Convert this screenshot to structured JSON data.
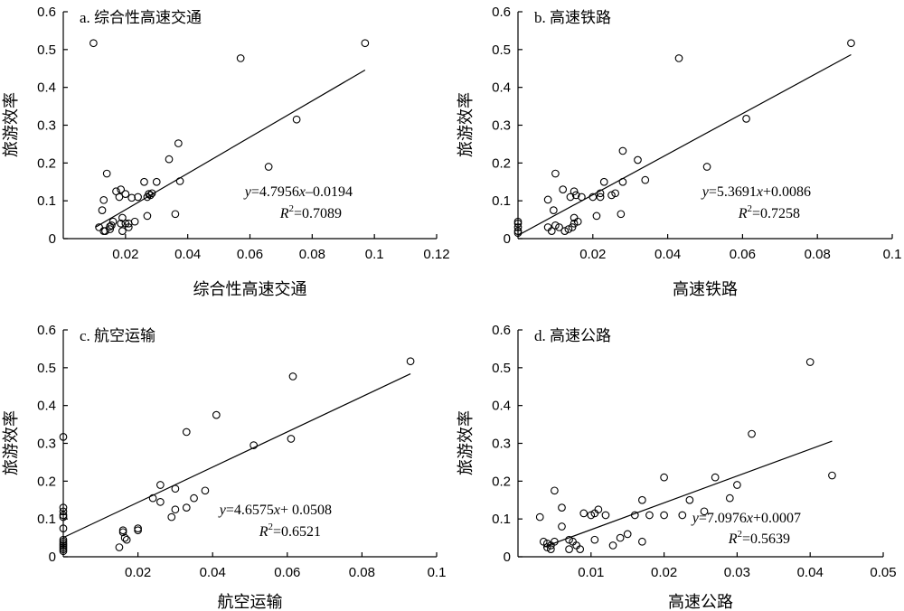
{
  "chart_data": [
    {
      "type": "scatter",
      "title": "a. 综合性高速交通",
      "xlabel": "综合性高速交通",
      "ylabel": "旅游效率",
      "xlim": [
        0,
        0.12
      ],
      "ylim": [
        0,
        0.6
      ],
      "x_ticks": [
        "0.02",
        "0.04",
        "0.06",
        "0.08",
        "0.1",
        "0.12"
      ],
      "y_ticks": [
        "0",
        "0.1",
        "0.2",
        "0.3",
        "0.4",
        "0.5",
        "0.6"
      ],
      "equation": {
        "y": "y",
        "rhs": "=4.7956",
        "x": "x",
        "tail": "–0.0194",
        "r_label": "R",
        "r_sup": "2",
        "r_rhs": "=0.7089"
      },
      "fit": {
        "slope": 4.7956,
        "intercept": -0.0194,
        "x_range": [
          0.0105,
          0.097
        ]
      },
      "points": [
        [
          0.0097,
          0.517
        ],
        [
          0.0115,
          0.03
        ],
        [
          0.0125,
          0.075
        ],
        [
          0.013,
          0.02
        ],
        [
          0.013,
          0.102
        ],
        [
          0.0135,
          0.02
        ],
        [
          0.014,
          0.172
        ],
        [
          0.015,
          0.025
        ],
        [
          0.015,
          0.032
        ],
        [
          0.0155,
          0.035
        ],
        [
          0.016,
          0.045
        ],
        [
          0.017,
          0.125
        ],
        [
          0.018,
          0.11
        ],
        [
          0.0185,
          0.13
        ],
        [
          0.0185,
          0.04
        ],
        [
          0.019,
          0.055
        ],
        [
          0.019,
          0.02
        ],
        [
          0.02,
          0.118
        ],
        [
          0.02,
          0.04
        ],
        [
          0.021,
          0.03
        ],
        [
          0.021,
          0.04
        ],
        [
          0.022,
          0.108
        ],
        [
          0.023,
          0.045
        ],
        [
          0.024,
          0.11
        ],
        [
          0.026,
          0.15
        ],
        [
          0.027,
          0.06
        ],
        [
          0.027,
          0.11
        ],
        [
          0.0275,
          0.118
        ],
        [
          0.028,
          0.115
        ],
        [
          0.0285,
          0.12
        ],
        [
          0.03,
          0.15
        ],
        [
          0.034,
          0.21
        ],
        [
          0.036,
          0.065
        ],
        [
          0.037,
          0.252
        ],
        [
          0.0375,
          0.152
        ],
        [
          0.057,
          0.477
        ],
        [
          0.066,
          0.19
        ],
        [
          0.075,
          0.315
        ],
        [
          0.097,
          0.517
        ]
      ]
    },
    {
      "type": "scatter",
      "title": "b. 高速铁路",
      "xlabel": "高速铁路",
      "ylabel": "旅游效率",
      "xlim": [
        0,
        0.1
      ],
      "ylim": [
        0,
        0.6
      ],
      "x_ticks": [
        "0.02",
        "0.04",
        "0.06",
        "0.08",
        "0.1"
      ],
      "y_ticks": [
        "0",
        "0.1",
        "0.2",
        "0.3",
        "0.4",
        "0.5",
        "0.6"
      ],
      "equation": {
        "y": "y",
        "rhs": "=5.3691",
        "x": "x",
        "tail": "+0.0086",
        "r_label": "R",
        "r_sup": "2",
        "r_rhs": "=0.7258"
      },
      "fit": {
        "slope": 5.3691,
        "intercept": 0.0086,
        "x_range": [
          0.0,
          0.089
        ]
      },
      "points": [
        [
          0.0,
          0.015
        ],
        [
          0.0,
          0.02
        ],
        [
          0.0,
          0.03
        ],
        [
          0.0,
          0.04
        ],
        [
          0.0,
          0.045
        ],
        [
          0.008,
          0.03
        ],
        [
          0.008,
          0.103
        ],
        [
          0.009,
          0.02
        ],
        [
          0.0095,
          0.075
        ],
        [
          0.01,
          0.172
        ],
        [
          0.01,
          0.035
        ],
        [
          0.011,
          0.03
        ],
        [
          0.012,
          0.13
        ],
        [
          0.0125,
          0.02
        ],
        [
          0.0135,
          0.025
        ],
        [
          0.014,
          0.11
        ],
        [
          0.0145,
          0.03
        ],
        [
          0.015,
          0.04
        ],
        [
          0.015,
          0.055
        ],
        [
          0.015,
          0.125
        ],
        [
          0.0155,
          0.115
        ],
        [
          0.016,
          0.045
        ],
        [
          0.017,
          0.11
        ],
        [
          0.02,
          0.11
        ],
        [
          0.021,
          0.06
        ],
        [
          0.022,
          0.12
        ],
        [
          0.022,
          0.11
        ],
        [
          0.023,
          0.15
        ],
        [
          0.025,
          0.115
        ],
        [
          0.026,
          0.12
        ],
        [
          0.0275,
          0.065
        ],
        [
          0.028,
          0.232
        ],
        [
          0.028,
          0.15
        ],
        [
          0.032,
          0.208
        ],
        [
          0.034,
          0.155
        ],
        [
          0.043,
          0.477
        ],
        [
          0.0505,
          0.19
        ],
        [
          0.061,
          0.317
        ],
        [
          0.089,
          0.517
        ]
      ]
    },
    {
      "type": "scatter",
      "title": "c. 航空运输",
      "xlabel": "航空运输",
      "ylabel": "旅游效率",
      "xlim": [
        0,
        0.1
      ],
      "ylim": [
        0,
        0.6
      ],
      "x_ticks": [
        "0.02",
        "0.04",
        "0.06",
        "0.08",
        "0.1"
      ],
      "y_ticks": [
        "0",
        "0.1",
        "0.2",
        "0.3",
        "0.4",
        "0.5",
        "0.6"
      ],
      "equation": {
        "y": "y",
        "rhs": "=4.6575",
        "x": "x",
        "tail": "+ 0.0508",
        "r_label": "R",
        "r_sup": "2",
        "r_rhs": "=0.6521"
      },
      "fit": {
        "slope": 4.6575,
        "intercept": 0.0508,
        "x_range": [
          0.0,
          0.093
        ]
      },
      "points": [
        [
          0.0,
          0.317
        ],
        [
          0.0,
          0.13
        ],
        [
          0.0,
          0.12
        ],
        [
          0.0,
          0.11
        ],
        [
          0.0,
          0.105
        ],
        [
          0.0,
          0.075
        ],
        [
          0.0,
          0.045
        ],
        [
          0.0,
          0.04
        ],
        [
          0.0,
          0.035
        ],
        [
          0.0,
          0.03
        ],
        [
          0.0,
          0.025
        ],
        [
          0.0,
          0.02
        ],
        [
          0.0,
          0.015
        ],
        [
          0.015,
          0.025
        ],
        [
          0.016,
          0.07
        ],
        [
          0.016,
          0.065
        ],
        [
          0.0165,
          0.05
        ],
        [
          0.017,
          0.045
        ],
        [
          0.02,
          0.075
        ],
        [
          0.02,
          0.07
        ],
        [
          0.024,
          0.155
        ],
        [
          0.026,
          0.19
        ],
        [
          0.026,
          0.145
        ],
        [
          0.029,
          0.105
        ],
        [
          0.03,
          0.125
        ],
        [
          0.03,
          0.18
        ],
        [
          0.033,
          0.13
        ],
        [
          0.033,
          0.33
        ],
        [
          0.035,
          0.155
        ],
        [
          0.038,
          0.175
        ],
        [
          0.041,
          0.375
        ],
        [
          0.051,
          0.295
        ],
        [
          0.061,
          0.312
        ],
        [
          0.0615,
          0.477
        ],
        [
          0.093,
          0.517
        ]
      ]
    },
    {
      "type": "scatter",
      "title": "d. 高速公路",
      "xlabel": "高速公路",
      "ylabel": "旅游效率",
      "xlim": [
        0,
        0.05
      ],
      "ylim": [
        0,
        0.6
      ],
      "x_ticks": [
        "0.01",
        "0.02",
        "0.03",
        "0.04",
        "0.05"
      ],
      "y_ticks": [
        "0",
        "0.1",
        "0.2",
        "0.3",
        "0.4",
        "0.5",
        "0.6"
      ],
      "equation": {
        "y": "y",
        "rhs": "=7.0976",
        "x": "x",
        "tail": "+0.0007",
        "r_label": "R",
        "r_sup": "2",
        "r_rhs": "=0.5639"
      },
      "fit": {
        "slope": 7.0976,
        "intercept": 0.0007,
        "x_range": [
          0.0035,
          0.043
        ]
      },
      "points": [
        [
          0.003,
          0.105
        ],
        [
          0.0035,
          0.04
        ],
        [
          0.004,
          0.025
        ],
        [
          0.004,
          0.035
        ],
        [
          0.0045,
          0.02
        ],
        [
          0.0045,
          0.03
        ],
        [
          0.005,
          0.175
        ],
        [
          0.005,
          0.04
        ],
        [
          0.006,
          0.08
        ],
        [
          0.006,
          0.13
        ],
        [
          0.007,
          0.045
        ],
        [
          0.007,
          0.02
        ],
        [
          0.0075,
          0.04
        ],
        [
          0.008,
          0.03
        ],
        [
          0.0085,
          0.02
        ],
        [
          0.009,
          0.115
        ],
        [
          0.01,
          0.11
        ],
        [
          0.0105,
          0.045
        ],
        [
          0.0105,
          0.115
        ],
        [
          0.011,
          0.125
        ],
        [
          0.012,
          0.11
        ],
        [
          0.013,
          0.03
        ],
        [
          0.014,
          0.05
        ],
        [
          0.015,
          0.06
        ],
        [
          0.016,
          0.11
        ],
        [
          0.017,
          0.15
        ],
        [
          0.017,
          0.04
        ],
        [
          0.018,
          0.11
        ],
        [
          0.02,
          0.21
        ],
        [
          0.02,
          0.11
        ],
        [
          0.0225,
          0.11
        ],
        [
          0.0235,
          0.15
        ],
        [
          0.0255,
          0.12
        ],
        [
          0.027,
          0.21
        ],
        [
          0.029,
          0.155
        ],
        [
          0.03,
          0.19
        ],
        [
          0.032,
          0.325
        ],
        [
          0.04,
          0.515
        ],
        [
          0.043,
          0.215
        ]
      ]
    }
  ]
}
